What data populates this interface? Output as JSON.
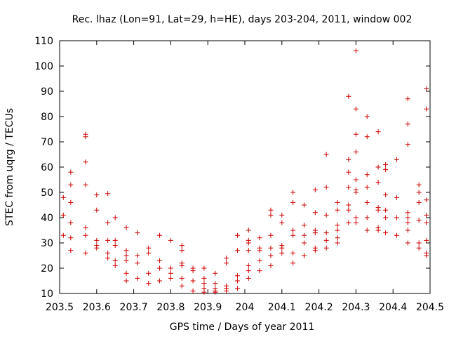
{
  "chart_data": {
    "type": "scatter",
    "title": "Rec. lhaz (Lon=91, Lat=29, h=HE), days 203-204, 2011, window 002",
    "xlabel": "GPS time / Days of year 2011",
    "ylabel": "STEC from uqrg / TECUs",
    "xlim": [
      203.5,
      204.5
    ],
    "ylim": [
      10,
      110
    ],
    "x_ticks": [
      203.5,
      203.6,
      203.7,
      203.8,
      203.9,
      204.0,
      204.1,
      204.2,
      204.3,
      204.4,
      204.5
    ],
    "x_tick_labels": [
      "203.5",
      "203.6",
      "203.7",
      "203.8",
      "203.9",
      "204",
      "204.1",
      "204.2",
      "204.3",
      "204.4",
      "204.5"
    ],
    "y_ticks": [
      10,
      20,
      30,
      40,
      50,
      60,
      70,
      80,
      90,
      100,
      110
    ],
    "y_tick_labels": [
      "10",
      "20",
      "30",
      "40",
      "50",
      "60",
      "70",
      "80",
      "90",
      "100",
      "110"
    ],
    "grid": false,
    "legend": "none",
    "marker_color": "#cc0000",
    "marker": "plus",
    "points": [
      [
        203.51,
        48
      ],
      [
        203.51,
        41
      ],
      [
        203.51,
        33
      ],
      [
        203.53,
        58
      ],
      [
        203.53,
        53
      ],
      [
        203.53,
        46
      ],
      [
        203.53,
        38
      ],
      [
        203.53,
        32
      ],
      [
        203.53,
        27
      ],
      [
        203.57,
        73
      ],
      [
        203.57,
        72
      ],
      [
        203.57,
        62
      ],
      [
        203.57,
        53
      ],
      [
        203.57,
        36
      ],
      [
        203.57,
        33
      ],
      [
        203.57,
        26
      ],
      [
        203.6,
        49
      ],
      [
        203.6,
        43
      ],
      [
        203.6,
        31
      ],
      [
        203.6,
        29
      ],
      [
        203.6,
        28
      ],
      [
        203.63,
        49.5
      ],
      [
        203.63,
        38
      ],
      [
        203.63,
        31
      ],
      [
        203.63,
        26
      ],
      [
        203.63,
        24
      ],
      [
        203.65,
        40
      ],
      [
        203.65,
        31
      ],
      [
        203.65,
        29
      ],
      [
        203.65,
        23
      ],
      [
        203.65,
        21
      ],
      [
        203.68,
        36
      ],
      [
        203.68,
        27
      ],
      [
        203.68,
        25
      ],
      [
        203.68,
        23
      ],
      [
        203.68,
        18
      ],
      [
        203.68,
        15
      ],
      [
        203.71,
        34
      ],
      [
        203.71,
        25
      ],
      [
        203.71,
        22
      ],
      [
        203.71,
        16
      ],
      [
        203.74,
        28
      ],
      [
        203.74,
        26
      ],
      [
        203.74,
        18
      ],
      [
        203.74,
        14
      ],
      [
        203.77,
        33
      ],
      [
        203.77,
        23
      ],
      [
        203.77,
        20
      ],
      [
        203.77,
        15
      ],
      [
        203.8,
        31
      ],
      [
        203.8,
        20
      ],
      [
        203.8,
        18
      ],
      [
        203.8,
        16
      ],
      [
        203.83,
        29
      ],
      [
        203.83,
        27
      ],
      [
        203.83,
        22
      ],
      [
        203.83,
        21
      ],
      [
        203.83,
        16
      ],
      [
        203.83,
        13
      ],
      [
        203.86,
        20
      ],
      [
        203.86,
        19
      ],
      [
        203.86,
        15
      ],
      [
        203.86,
        11
      ],
      [
        203.89,
        20
      ],
      [
        203.89,
        16
      ],
      [
        203.89,
        14
      ],
      [
        203.89,
        12
      ],
      [
        203.89,
        10.5
      ],
      [
        203.92,
        18
      ],
      [
        203.92,
        14
      ],
      [
        203.92,
        12
      ],
      [
        203.92,
        11
      ],
      [
        203.92,
        10.5
      ],
      [
        203.95,
        24
      ],
      [
        203.95,
        22
      ],
      [
        203.95,
        13
      ],
      [
        203.95,
        12
      ],
      [
        203.95,
        11
      ],
      [
        203.98,
        33
      ],
      [
        203.98,
        27
      ],
      [
        203.98,
        17
      ],
      [
        203.98,
        15
      ],
      [
        203.98,
        12
      ],
      [
        204.01,
        35
      ],
      [
        204.01,
        31
      ],
      [
        204.01,
        30
      ],
      [
        204.01,
        27
      ],
      [
        204.01,
        21
      ],
      [
        204.01,
        19
      ],
      [
        204.01,
        16
      ],
      [
        204.04,
        32
      ],
      [
        204.04,
        28
      ],
      [
        204.04,
        27
      ],
      [
        204.04,
        23
      ],
      [
        204.04,
        19
      ],
      [
        204.07,
        43
      ],
      [
        204.07,
        41
      ],
      [
        204.07,
        33
      ],
      [
        204.07,
        28
      ],
      [
        204.07,
        25
      ],
      [
        204.07,
        21
      ],
      [
        204.1,
        41
      ],
      [
        204.1,
        38
      ],
      [
        204.1,
        29
      ],
      [
        204.1,
        28
      ],
      [
        204.1,
        26
      ],
      [
        204.13,
        50
      ],
      [
        204.13,
        46
      ],
      [
        204.13,
        35
      ],
      [
        204.13,
        33
      ],
      [
        204.13,
        26
      ],
      [
        204.13,
        22
      ],
      [
        204.16,
        45
      ],
      [
        204.16,
        37
      ],
      [
        204.16,
        33
      ],
      [
        204.16,
        30
      ],
      [
        204.16,
        25
      ],
      [
        204.19,
        51
      ],
      [
        204.19,
        42
      ],
      [
        204.19,
        35
      ],
      [
        204.19,
        34
      ],
      [
        204.19,
        28
      ],
      [
        204.19,
        27
      ],
      [
        204.22,
        65
      ],
      [
        204.22,
        52
      ],
      [
        204.22,
        41
      ],
      [
        204.22,
        34
      ],
      [
        204.22,
        31
      ],
      [
        204.22,
        28
      ],
      [
        204.25,
        46
      ],
      [
        204.25,
        43
      ],
      [
        204.25,
        37
      ],
      [
        204.25,
        35
      ],
      [
        204.25,
        32
      ],
      [
        204.25,
        30
      ],
      [
        204.28,
        88
      ],
      [
        204.28,
        63
      ],
      [
        204.28,
        58
      ],
      [
        204.28,
        52
      ],
      [
        204.28,
        45
      ],
      [
        204.28,
        43
      ],
      [
        204.28,
        38
      ],
      [
        204.3,
        106
      ],
      [
        204.3,
        83
      ],
      [
        204.3,
        73
      ],
      [
        204.3,
        66
      ],
      [
        204.3,
        55
      ],
      [
        204.3,
        51
      ],
      [
        204.3,
        50
      ],
      [
        204.3,
        40
      ],
      [
        204.3,
        38
      ],
      [
        204.33,
        80
      ],
      [
        204.33,
        72
      ],
      [
        204.33,
        57
      ],
      [
        204.33,
        52
      ],
      [
        204.33,
        46
      ],
      [
        204.33,
        40
      ],
      [
        204.33,
        35
      ],
      [
        204.36,
        74
      ],
      [
        204.36,
        60
      ],
      [
        204.36,
        54
      ],
      [
        204.36,
        44
      ],
      [
        204.36,
        43
      ],
      [
        204.36,
        36
      ],
      [
        204.36,
        35
      ],
      [
        204.38,
        61
      ],
      [
        204.38,
        59
      ],
      [
        204.38,
        49
      ],
      [
        204.38,
        43
      ],
      [
        204.38,
        40
      ],
      [
        204.38,
        34
      ],
      [
        204.41,
        63
      ],
      [
        204.41,
        48
      ],
      [
        204.41,
        40
      ],
      [
        204.41,
        33
      ],
      [
        204.44,
        87
      ],
      [
        204.44,
        77
      ],
      [
        204.44,
        69
      ],
      [
        204.44,
        42
      ],
      [
        204.44,
        40
      ],
      [
        204.44,
        38
      ],
      [
        204.44,
        35
      ],
      [
        204.44,
        30
      ],
      [
        204.47,
        53
      ],
      [
        204.47,
        50
      ],
      [
        204.47,
        46
      ],
      [
        204.47,
        39
      ],
      [
        204.47,
        30
      ],
      [
        204.47,
        28
      ],
      [
        204.49,
        91
      ],
      [
        204.49,
        83
      ],
      [
        204.49,
        47
      ],
      [
        204.49,
        41
      ],
      [
        204.49,
        38
      ],
      [
        204.49,
        31
      ],
      [
        204.49,
        26
      ],
      [
        204.49,
        25
      ]
    ]
  }
}
